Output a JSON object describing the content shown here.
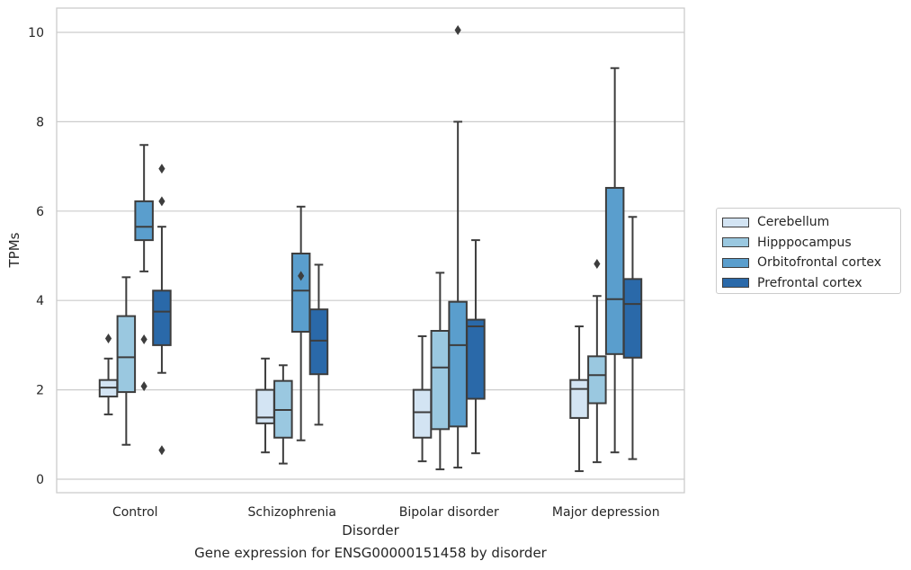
{
  "chart_data": {
    "type": "box",
    "title": "",
    "xlabel": "Disorder",
    "ylabel": "TPMs",
    "ylim": [
      -0.3,
      10.55
    ],
    "yticks": [
      0,
      2,
      4,
      6,
      8,
      10
    ],
    "grid": "horizontal",
    "legend_position": "right",
    "categories": [
      "Control",
      "Schizophrenia",
      "Bipolar disorder",
      "Major depression"
    ],
    "series": [
      {
        "name": "Cerebellum",
        "color": "#d3e4f3",
        "boxes": [
          {
            "whisker_low": 1.45,
            "q1": 1.85,
            "median": 2.05,
            "q3": 2.22,
            "whisker_high": 2.7,
            "outliers": [
              3.15
            ]
          },
          {
            "whisker_low": 0.6,
            "q1": 1.25,
            "median": 1.38,
            "q3": 2.0,
            "whisker_high": 2.7,
            "outliers": []
          },
          {
            "whisker_low": 0.4,
            "q1": 0.93,
            "median": 1.5,
            "q3": 2.0,
            "whisker_high": 3.2,
            "outliers": []
          },
          {
            "whisker_low": 0.18,
            "q1": 1.37,
            "median": 2.02,
            "q3": 2.22,
            "whisker_high": 3.42,
            "outliers": []
          }
        ]
      },
      {
        "name": "Hipppocampus",
        "color": "#9ac8e0",
        "boxes": [
          {
            "whisker_low": 0.77,
            "q1": 1.95,
            "median": 2.73,
            "q3": 3.65,
            "whisker_high": 4.52,
            "outliers": []
          },
          {
            "whisker_low": 0.35,
            "q1": 0.93,
            "median": 1.55,
            "q3": 2.2,
            "whisker_high": 2.55,
            "outliers": []
          },
          {
            "whisker_low": 0.22,
            "q1": 1.12,
            "median": 2.5,
            "q3": 3.32,
            "whisker_high": 4.62,
            "outliers": []
          },
          {
            "whisker_low": 0.38,
            "q1": 1.7,
            "median": 2.33,
            "q3": 2.75,
            "whisker_high": 4.1,
            "outliers": [
              4.82
            ]
          }
        ]
      },
      {
        "name": "Orbitofrontal cortex",
        "color": "#5a9ecd",
        "boxes": [
          {
            "whisker_low": 4.65,
            "q1": 5.35,
            "median": 5.65,
            "q3": 6.22,
            "whisker_high": 7.48,
            "outliers": [
              3.13,
              2.08
            ]
          },
          {
            "whisker_low": 0.87,
            "q1": 3.3,
            "median": 4.22,
            "q3": 5.05,
            "whisker_high": 6.1,
            "outliers": [
              4.55
            ]
          },
          {
            "whisker_low": 0.26,
            "q1": 1.18,
            "median": 3.0,
            "q3": 3.97,
            "whisker_high": 8.0,
            "outliers": [
              10.05
            ]
          },
          {
            "whisker_low": 0.6,
            "q1": 2.8,
            "median": 4.03,
            "q3": 6.52,
            "whisker_high": 9.2,
            "outliers": []
          }
        ]
      },
      {
        "name": "Prefrontal cortex",
        "color": "#2a69a9",
        "boxes": [
          {
            "whisker_low": 2.38,
            "q1": 3.0,
            "median": 3.75,
            "q3": 4.22,
            "whisker_high": 5.65,
            "outliers": [
              6.95,
              6.22,
              0.65
            ]
          },
          {
            "whisker_low": 1.22,
            "q1": 2.35,
            "median": 3.1,
            "q3": 3.8,
            "whisker_high": 4.8,
            "outliers": []
          },
          {
            "whisker_low": 0.58,
            "q1": 1.8,
            "median": 3.42,
            "q3": 3.57,
            "whisker_high": 5.35,
            "outliers": []
          },
          {
            "whisker_low": 0.45,
            "q1": 2.72,
            "median": 3.92,
            "q3": 4.48,
            "whisker_high": 5.87,
            "outliers": []
          }
        ]
      }
    ]
  },
  "caption": "Gene expression for ENSG00000151458 by disorder"
}
